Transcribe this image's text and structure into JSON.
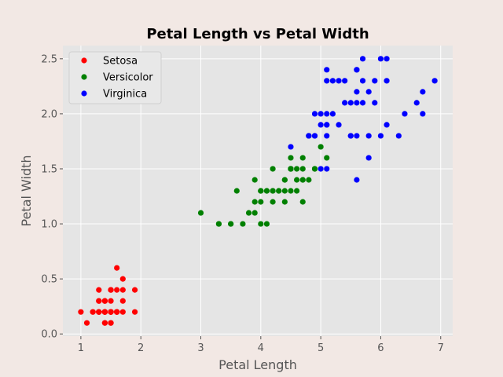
{
  "chart_data": {
    "type": "scatter",
    "title": "Petal Length vs Petal Width",
    "xlabel": "Petal Length",
    "ylabel": "Petal Width",
    "xlim": [
      0.7,
      7.2
    ],
    "ylim": [
      -0.02,
      2.62
    ],
    "xticks": [
      1,
      2,
      3,
      4,
      5,
      6,
      7
    ],
    "yticks": [
      0.0,
      0.5,
      1.0,
      1.5,
      2.0,
      2.5
    ],
    "grid": true,
    "legend_position": "top-left",
    "series": [
      {
        "name": "Setosa",
        "color": "#ff0000",
        "points": [
          [
            1.4,
            0.2
          ],
          [
            1.4,
            0.2
          ],
          [
            1.3,
            0.2
          ],
          [
            1.5,
            0.2
          ],
          [
            1.4,
            0.2
          ],
          [
            1.7,
            0.4
          ],
          [
            1.4,
            0.3
          ],
          [
            1.5,
            0.2
          ],
          [
            1.4,
            0.2
          ],
          [
            1.5,
            0.1
          ],
          [
            1.5,
            0.2
          ],
          [
            1.6,
            0.2
          ],
          [
            1.4,
            0.1
          ],
          [
            1.1,
            0.1
          ],
          [
            1.2,
            0.2
          ],
          [
            1.5,
            0.4
          ],
          [
            1.3,
            0.4
          ],
          [
            1.4,
            0.3
          ],
          [
            1.7,
            0.3
          ],
          [
            1.5,
            0.3
          ],
          [
            1.7,
            0.2
          ],
          [
            1.5,
            0.4
          ],
          [
            1.0,
            0.2
          ],
          [
            1.7,
            0.5
          ],
          [
            1.9,
            0.2
          ],
          [
            1.6,
            0.2
          ],
          [
            1.6,
            0.4
          ],
          [
            1.5,
            0.2
          ],
          [
            1.4,
            0.2
          ],
          [
            1.6,
            0.2
          ],
          [
            1.6,
            0.2
          ],
          [
            1.5,
            0.4
          ],
          [
            1.5,
            0.1
          ],
          [
            1.4,
            0.2
          ],
          [
            1.5,
            0.2
          ],
          [
            1.2,
            0.2
          ],
          [
            1.3,
            0.2
          ],
          [
            1.4,
            0.1
          ],
          [
            1.3,
            0.2
          ],
          [
            1.5,
            0.2
          ],
          [
            1.3,
            0.3
          ],
          [
            1.3,
            0.3
          ],
          [
            1.3,
            0.2
          ],
          [
            1.6,
            0.6
          ],
          [
            1.9,
            0.4
          ],
          [
            1.4,
            0.3
          ],
          [
            1.6,
            0.2
          ],
          [
            1.4,
            0.2
          ],
          [
            1.5,
            0.2
          ],
          [
            1.4,
            0.2
          ]
        ]
      },
      {
        "name": "Versicolor",
        "color": "#008000",
        "points": [
          [
            4.7,
            1.4
          ],
          [
            4.5,
            1.5
          ],
          [
            4.9,
            1.5
          ],
          [
            4.0,
            1.3
          ],
          [
            4.6,
            1.5
          ],
          [
            4.5,
            1.3
          ],
          [
            4.7,
            1.6
          ],
          [
            3.3,
            1.0
          ],
          [
            4.6,
            1.3
          ],
          [
            3.9,
            1.4
          ],
          [
            3.5,
            1.0
          ],
          [
            4.2,
            1.5
          ],
          [
            4.0,
            1.0
          ],
          [
            4.7,
            1.4
          ],
          [
            3.6,
            1.3
          ],
          [
            4.4,
            1.4
          ],
          [
            4.5,
            1.5
          ],
          [
            4.1,
            1.0
          ],
          [
            4.5,
            1.5
          ],
          [
            3.9,
            1.1
          ],
          [
            4.8,
            1.8
          ],
          [
            4.0,
            1.3
          ],
          [
            4.9,
            1.5
          ],
          [
            4.7,
            1.2
          ],
          [
            4.3,
            1.3
          ],
          [
            4.4,
            1.4
          ],
          [
            4.8,
            1.4
          ],
          [
            5.0,
            1.7
          ],
          [
            4.5,
            1.5
          ],
          [
            3.5,
            1.0
          ],
          [
            3.8,
            1.1
          ],
          [
            3.7,
            1.0
          ],
          [
            3.9,
            1.2
          ],
          [
            5.1,
            1.6
          ],
          [
            4.5,
            1.5
          ],
          [
            4.5,
            1.6
          ],
          [
            4.7,
            1.5
          ],
          [
            4.4,
            1.3
          ],
          [
            4.1,
            1.3
          ],
          [
            4.0,
            1.3
          ],
          [
            4.4,
            1.2
          ],
          [
            4.6,
            1.4
          ],
          [
            4.0,
            1.2
          ],
          [
            3.3,
            1.0
          ],
          [
            4.2,
            1.3
          ],
          [
            4.2,
            1.2
          ],
          [
            4.2,
            1.3
          ],
          [
            4.3,
            1.3
          ],
          [
            3.0,
            1.1
          ],
          [
            4.1,
            1.3
          ]
        ]
      },
      {
        "name": "Virginica",
        "color": "#0000ff",
        "points": [
          [
            6.0,
            2.5
          ],
          [
            5.1,
            1.9
          ],
          [
            5.9,
            2.1
          ],
          [
            5.6,
            1.8
          ],
          [
            5.8,
            2.2
          ],
          [
            6.6,
            2.1
          ],
          [
            4.5,
            1.7
          ],
          [
            6.3,
            1.8
          ],
          [
            5.8,
            1.8
          ],
          [
            6.1,
            2.5
          ],
          [
            5.1,
            2.0
          ],
          [
            5.3,
            1.9
          ],
          [
            5.5,
            2.1
          ],
          [
            5.0,
            2.0
          ],
          [
            5.1,
            2.4
          ],
          [
            5.3,
            2.3
          ],
          [
            5.5,
            1.8
          ],
          [
            6.7,
            2.2
          ],
          [
            6.9,
            2.3
          ],
          [
            5.0,
            1.5
          ],
          [
            5.7,
            2.3
          ],
          [
            4.9,
            2.0
          ],
          [
            6.7,
            2.0
          ],
          [
            4.9,
            1.8
          ],
          [
            5.7,
            2.1
          ],
          [
            6.0,
            1.8
          ],
          [
            4.8,
            1.8
          ],
          [
            4.9,
            1.8
          ],
          [
            5.6,
            2.1
          ],
          [
            5.8,
            1.6
          ],
          [
            6.1,
            1.9
          ],
          [
            6.4,
            2.0
          ],
          [
            5.6,
            2.2
          ],
          [
            5.1,
            1.5
          ],
          [
            5.6,
            1.4
          ],
          [
            6.1,
            2.3
          ],
          [
            5.6,
            2.4
          ],
          [
            5.5,
            1.8
          ],
          [
            4.8,
            1.8
          ],
          [
            5.4,
            2.1
          ],
          [
            5.6,
            2.4
          ],
          [
            5.1,
            2.3
          ],
          [
            5.1,
            1.9
          ],
          [
            5.9,
            2.3
          ],
          [
            5.7,
            2.5
          ],
          [
            5.2,
            2.3
          ],
          [
            5.0,
            1.9
          ],
          [
            5.2,
            2.0
          ],
          [
            5.4,
            2.3
          ],
          [
            5.1,
            1.8
          ]
        ]
      }
    ]
  }
}
